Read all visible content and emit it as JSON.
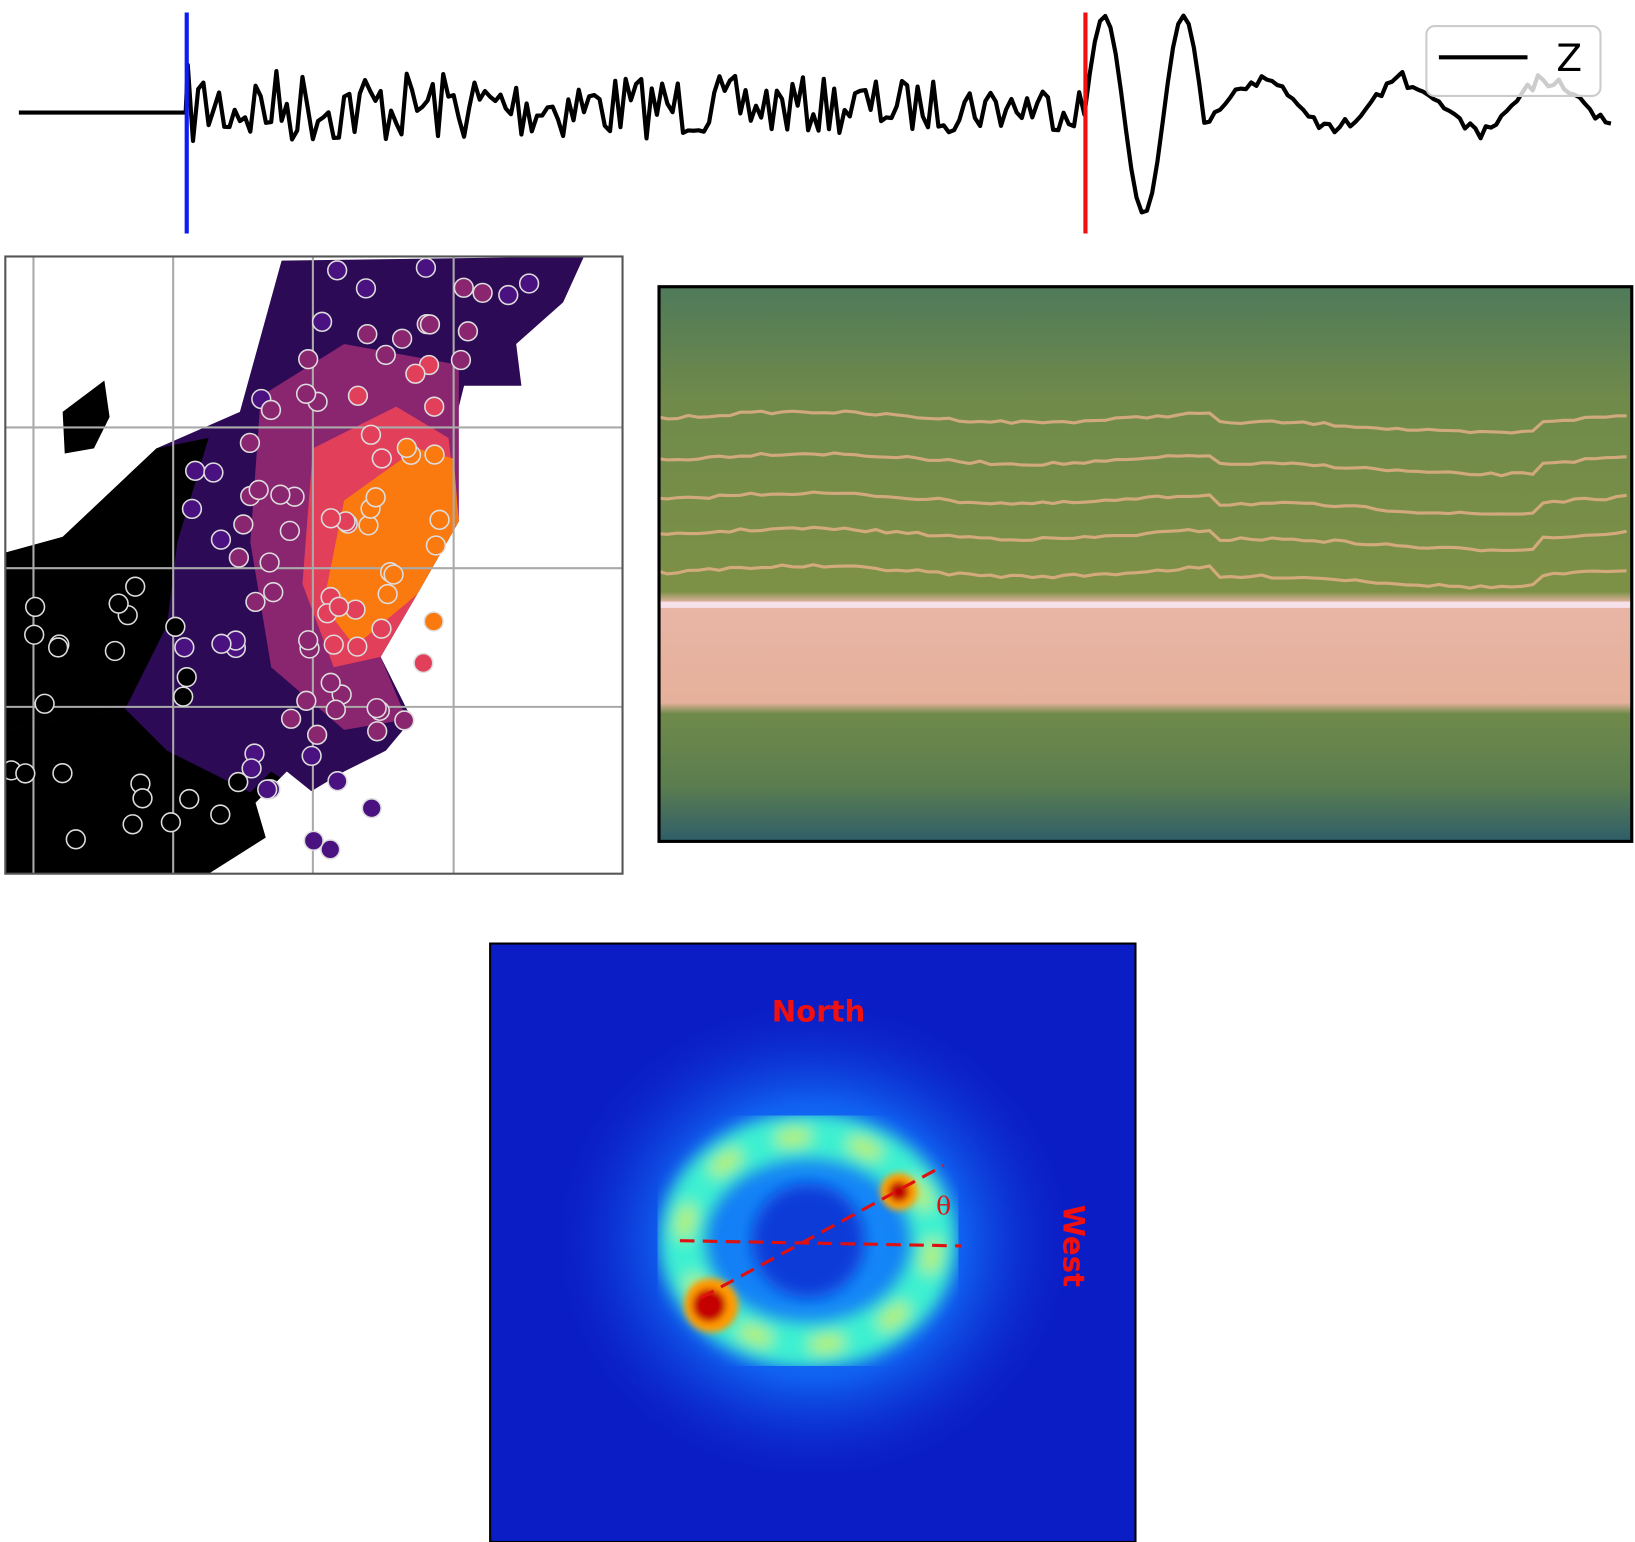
{
  "waveform": {
    "legend": "Z"
  },
  "heatmap": {
    "north": "North",
    "west": "West",
    "angle": "θ"
  }
}
